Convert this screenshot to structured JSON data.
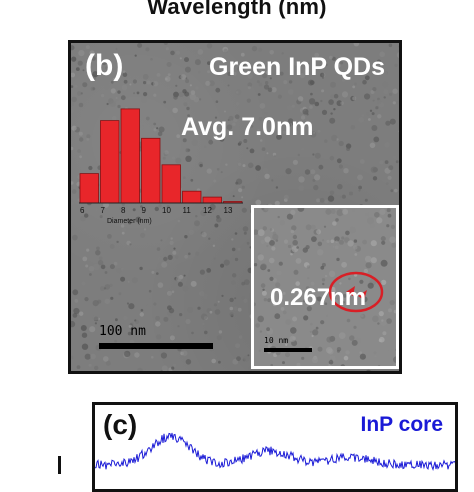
{
  "figure": {
    "top_axis_label": "Wavelength (nm)",
    "panel_b": {
      "letter": "(b)",
      "title": "Green InP QDs",
      "average_label": "Avg. 7.0nm",
      "scale_bar_label": "100 nm",
      "inset": {
        "d_spacing_label": "0.267nm",
        "scale_bar_label": "10 nm"
      }
    },
    "panel_c": {
      "letter": "(c)",
      "title": "InP core"
    }
  },
  "colors": {
    "histogram_bar": "#e8262a",
    "spectrum_line": "#1a1ad6",
    "circle": "#d81f26"
  },
  "chart_data": {
    "type": "bar",
    "title": "",
    "xlabel": "Diameter (nm)",
    "ylabel": "",
    "categories": [
      "6",
      "7",
      "8",
      "9",
      "10",
      "11",
      "12",
      "13"
    ],
    "tick_labels": [
      "6",
      "7",
      "8",
      "9",
      "10",
      "11",
      "12",
      "13"
    ],
    "values": [
      10,
      28,
      32,
      22,
      13,
      4,
      2,
      0.5
    ],
    "ylim": [
      0,
      34
    ],
    "grid": false,
    "legend": "none"
  }
}
